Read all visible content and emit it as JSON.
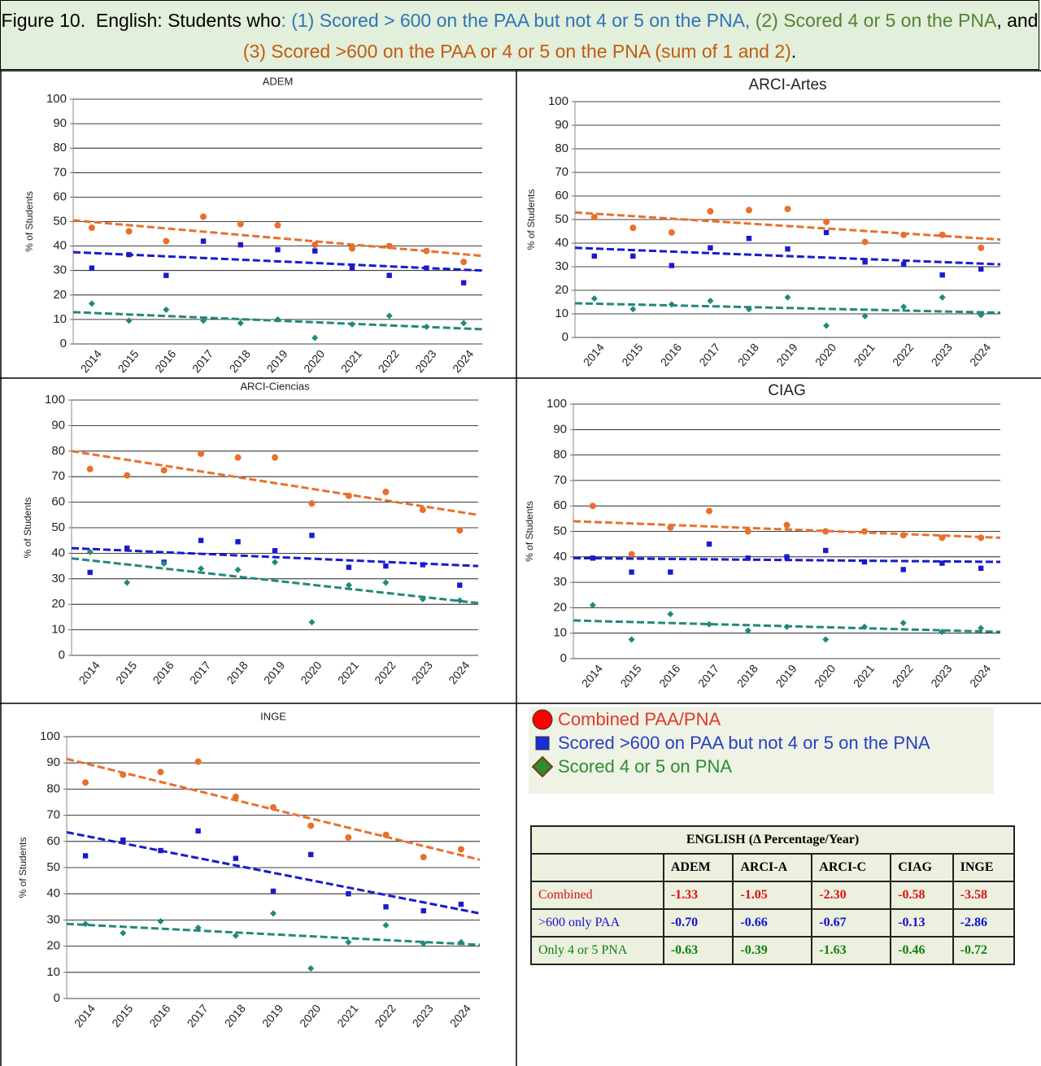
{
  "title_parts": [
    {
      "text": "Figure 10.  English: Students who",
      "color": "#000000"
    },
    {
      "text": ": (1) Scored > 600 on the PAA but not 4 or 5 on the PNA, ",
      "color": "#2e75b6"
    },
    {
      "text": "(2) Scored 4 or 5 on the PNA",
      "color": "#548235"
    },
    {
      "text": ", and ",
      "color": "#000000"
    },
    {
      "text": "(3) Scored >600 on the PAA or 4 or 5 on the PNA (sum of 1 and 2)",
      "color": "#c55a11"
    },
    {
      "text": ".",
      "color": "#000000"
    }
  ],
  "chart_data": [
    {
      "type": "scatter",
      "title": "ADEM",
      "y_label": "% of Students",
      "categories": [
        "2014",
        "2015",
        "2016",
        "2017",
        "2018",
        "2019",
        "2020",
        "2021",
        "2022",
        "2023",
        "2024"
      ],
      "ylim": [
        0,
        100
      ],
      "yticks": [
        0,
        10,
        20,
        30,
        40,
        50,
        60,
        70,
        80,
        90,
        100
      ],
      "grid": true,
      "series": [
        {
          "color": "#e8702a",
          "marker": "circle",
          "values": [
            47.5,
            46,
            42,
            52,
            49,
            48.5,
            40.5,
            39,
            40,
            38,
            33.5
          ],
          "trend": [
            50.5,
            36
          ]
        },
        {
          "color": "#1a1acc",
          "marker": "square",
          "values": [
            31,
            36.5,
            28,
            42,
            40.5,
            38.5,
            38,
            31,
            28,
            31,
            25
          ],
          "trend": [
            37.5,
            30
          ]
        },
        {
          "color": "#22887a",
          "marker": "diamond",
          "values": [
            16.5,
            9.5,
            14,
            9.5,
            8.5,
            10,
            2.5,
            8,
            11.5,
            7,
            8.5
          ],
          "trend": [
            13,
            6
          ]
        }
      ]
    },
    {
      "type": "scatter",
      "title": "ARCI-Artes",
      "y_label": "% of Students",
      "categories": [
        "2014",
        "2015",
        "2016",
        "2017",
        "2018",
        "2019",
        "2020",
        "2021",
        "2022",
        "2023",
        "2024"
      ],
      "ylim": [
        0,
        100
      ],
      "yticks": [
        0,
        10,
        20,
        30,
        40,
        50,
        60,
        70,
        80,
        90,
        100
      ],
      "grid": true,
      "series": [
        {
          "color": "#e8702a",
          "marker": "circle",
          "values": [
            51,
            46.5,
            44.5,
            53.5,
            54,
            54.5,
            49,
            40.5,
            43.5,
            43.5,
            38
          ],
          "trend": [
            53,
            41.5
          ]
        },
        {
          "color": "#1a1acc",
          "marker": "square",
          "values": [
            34.5,
            34.5,
            30.5,
            38,
            42,
            37.5,
            44.5,
            32,
            31,
            26.5,
            29
          ],
          "trend": [
            38,
            31
          ]
        },
        {
          "color": "#22887a",
          "marker": "diamond",
          "values": [
            16.5,
            12,
            14,
            15.5,
            12,
            17,
            5,
            9,
            13,
            17,
            9.5
          ],
          "trend": [
            14.5,
            10.5
          ]
        }
      ]
    },
    {
      "type": "scatter",
      "title": "ARCI-Ciencias",
      "y_label": "% of Students",
      "categories": [
        "2014",
        "2015",
        "2016",
        "2017",
        "2018",
        "2019",
        "2020",
        "2021",
        "2022",
        "2023",
        "2024"
      ],
      "ylim": [
        0,
        100
      ],
      "yticks": [
        0,
        10,
        20,
        30,
        40,
        50,
        60,
        70,
        80,
        90,
        100
      ],
      "grid": true,
      "series": [
        {
          "color": "#e8702a",
          "marker": "circle",
          "values": [
            73,
            70.5,
            72.5,
            79,
            77.5,
            77.5,
            59.5,
            62.5,
            64,
            57,
            49
          ],
          "trend": [
            80,
            55
          ]
        },
        {
          "color": "#1a1acc",
          "marker": "square",
          "values": [
            32.5,
            42,
            36.5,
            45,
            44.5,
            41,
            47,
            34.5,
            35,
            35.5,
            27.5
          ],
          "trend": [
            42,
            35
          ]
        },
        {
          "color": "#22887a",
          "marker": "diamond",
          "values": [
            40.5,
            28.5,
            36,
            34,
            33.5,
            36.5,
            13,
            27.5,
            28.5,
            22,
            21.5
          ],
          "trend": [
            38,
            20.5
          ]
        }
      ]
    },
    {
      "type": "scatter",
      "title": "CIAG",
      "y_label": "% of Students",
      "categories": [
        "2014",
        "2015",
        "2016",
        "2017",
        "2018",
        "2019",
        "2020",
        "2021",
        "2022",
        "2023",
        "2024"
      ],
      "ylim": [
        0,
        100
      ],
      "yticks": [
        0,
        10,
        20,
        30,
        40,
        50,
        60,
        70,
        80,
        90,
        100
      ],
      "grid": true,
      "series": [
        {
          "color": "#e8702a",
          "marker": "circle",
          "values": [
            60,
            41,
            51.5,
            58,
            50,
            52.5,
            50,
            50,
            48.5,
            47.5,
            47.5
          ],
          "trend": [
            54,
            47.5
          ]
        },
        {
          "color": "#1a1acc",
          "marker": "square",
          "values": [
            39.5,
            34,
            34,
            45,
            39.5,
            40,
            42.5,
            38,
            35,
            37.5,
            35.5
          ],
          "trend": [
            39.5,
            38
          ]
        },
        {
          "color": "#22887a",
          "marker": "diamond",
          "values": [
            21,
            7.5,
            17.5,
            13.5,
            11,
            12.5,
            7.5,
            12.5,
            14,
            10.5,
            12
          ],
          "trend": [
            15,
            10.5
          ]
        }
      ]
    },
    {
      "type": "scatter",
      "title": "INGE",
      "y_label": "% of Students",
      "categories": [
        "2014",
        "2015",
        "2016",
        "2017",
        "2018",
        "2019",
        "2020",
        "2021",
        "2022",
        "2023",
        "2024"
      ],
      "ylim": [
        0,
        100
      ],
      "yticks": [
        0,
        10,
        20,
        30,
        40,
        50,
        60,
        70,
        80,
        90,
        100
      ],
      "grid": true,
      "series": [
        {
          "color": "#e8702a",
          "marker": "circle",
          "values": [
            82.5,
            85.5,
            86.5,
            90.5,
            77,
            73,
            66,
            61.5,
            62.5,
            54,
            57
          ],
          "trend": [
            91.5,
            53
          ]
        },
        {
          "color": "#1a1acc",
          "marker": "square",
          "values": [
            54.5,
            60.5,
            56.5,
            64,
            53.5,
            41,
            55,
            40,
            35,
            33.5,
            36
          ],
          "trend": [
            63.5,
            32.5
          ]
        },
        {
          "color": "#22887a",
          "marker": "diamond",
          "values": [
            28.5,
            25,
            29.5,
            27,
            24,
            32.5,
            11.5,
            21.5,
            28,
            21,
            21.5
          ],
          "trend": [
            28.5,
            20.5
          ]
        }
      ]
    }
  ],
  "legend": [
    {
      "label": "Combined PAA/PNA",
      "marker": "circle",
      "color": "#ff0000",
      "text_color": "#e03a2a"
    },
    {
      "label": "Scored >600 on PAA but not 4 or 5 on the PNA",
      "marker": "square",
      "color": "#1a2fd6",
      "text_color": "#2a3fc0"
    },
    {
      "label": "Scored 4 or 5 on PNA",
      "marker": "diamond",
      "color": "#2e8b2e",
      "text_color": "#2e8b2e"
    }
  ],
  "table": {
    "title": "ENGLISH (Δ Percentage/Year)",
    "columns": [
      "ADEM",
      "ARCI-A",
      "ARCI-C",
      "CIAG",
      "INGE"
    ],
    "rows": [
      {
        "label": "Combined",
        "color": "#e01010",
        "values": [
          "-1.33",
          "-1.05",
          "-2.30",
          "-0.58",
          "-3.58"
        ]
      },
      {
        "label": ">600 only PAA",
        "color": "#1010d0",
        "values": [
          "-0.70",
          "-0.66",
          "-0.67",
          "-0.13",
          "-2.86"
        ]
      },
      {
        "label": "Only 4 or 5 PNA",
        "color": "#108010",
        "values": [
          "-0.63",
          "-0.39",
          "-1.63",
          "-0.46",
          "-0.72"
        ]
      }
    ]
  }
}
